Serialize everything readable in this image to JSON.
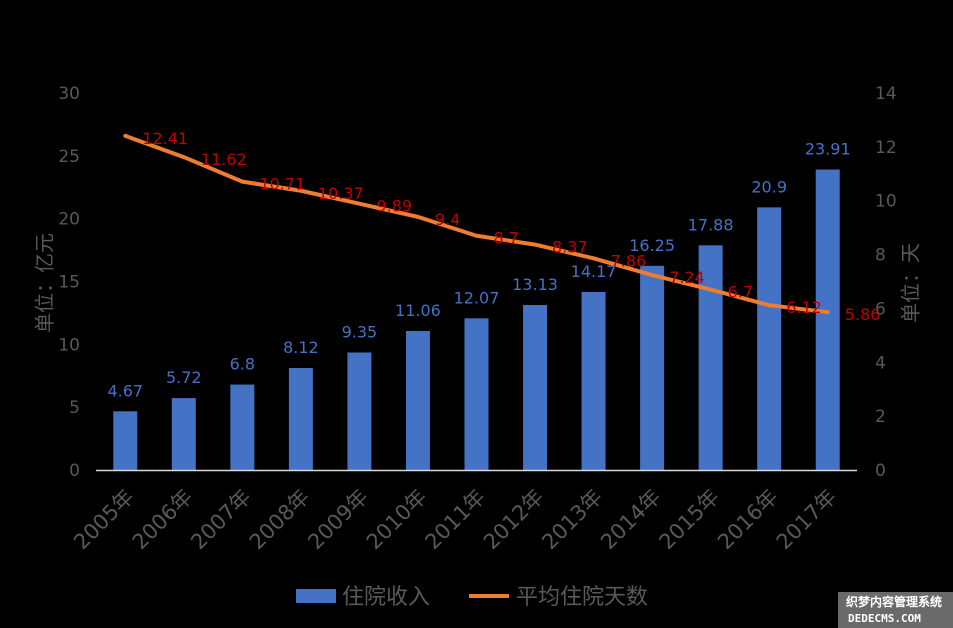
{
  "chart_data": {
    "type": "bar",
    "categories": [
      "2005年",
      "2006年",
      "2007年",
      "2008年",
      "2009年",
      "2010年",
      "2011年",
      "2012年",
      "2013年",
      "2014年",
      "2015年",
      "2016年",
      "2017年"
    ],
    "series": [
      {
        "name": "住院收入",
        "type": "bar",
        "axis": "left",
        "values": [
          4.67,
          5.72,
          6.8,
          8.12,
          9.35,
          11.06,
          12.07,
          13.13,
          14.17,
          16.25,
          17.88,
          20.9,
          23.91
        ],
        "color": "#4472C4"
      },
      {
        "name": "平均住院天数",
        "type": "line",
        "axis": "right",
        "values": [
          12.41,
          11.62,
          10.71,
          10.37,
          9.89,
          9.4,
          8.7,
          8.37,
          7.86,
          7.24,
          6.7,
          6.12,
          5.86
        ],
        "color": "#ED7D31",
        "label_color": "#C00000"
      }
    ],
    "ylabel": "单位：亿元",
    "ylabel_right": "单位：天",
    "ylim": [
      0,
      30
    ],
    "y_ticks": [
      0,
      5,
      10,
      15,
      20,
      25,
      30
    ],
    "ylim_right": [
      0,
      14
    ],
    "y_ticks_right": [
      0,
      2,
      4,
      6,
      8,
      10,
      12,
      14
    ],
    "grid": false,
    "legend_position": "bottom"
  },
  "watermark": {
    "line1": "织梦内容管理系统",
    "line2": "DEDECMS.COM"
  }
}
